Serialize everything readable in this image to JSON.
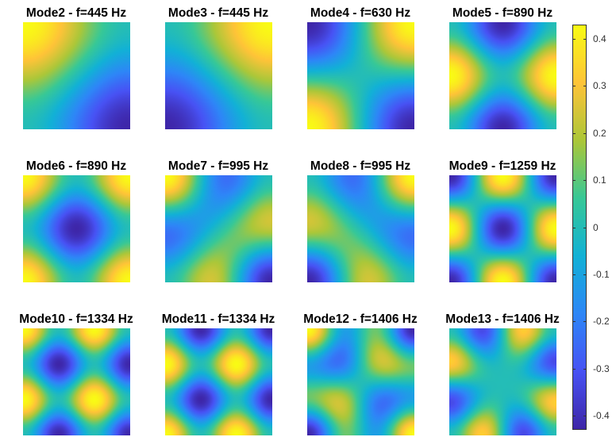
{
  "chart_data": {
    "type": "heatmap",
    "description_of_layout": "",
    "panels": [
      {
        "title": "Mode2 - f=445 Hz",
        "kind": "m2"
      },
      {
        "title": "Mode3 - f=445 Hz",
        "kind": "m3"
      },
      {
        "title": "Mode4 - f=630 Hz",
        "kind": "m4"
      },
      {
        "title": "Mode5 - f=890 Hz",
        "kind": "m5"
      },
      {
        "title": "Mode6 - f=890 Hz",
        "kind": "m6"
      },
      {
        "title": "Mode7 - f=995 Hz",
        "kind": "m7"
      },
      {
        "title": "Mode8 - f=995 Hz",
        "kind": "m8"
      },
      {
        "title": "Mode9 - f=1259 Hz",
        "kind": "m9"
      },
      {
        "title": "Mode10 - f=1334 Hz",
        "kind": "m10"
      },
      {
        "title": "Mode11 - f=1334 Hz",
        "kind": "m11"
      },
      {
        "title": "Mode12 - f=1406 Hz",
        "kind": "m12"
      },
      {
        "title": "Mode13 - f=1406 Hz",
        "kind": "m13"
      }
    ],
    "colorbar": {
      "colormap": "parula",
      "range": [
        -0.43,
        0.43
      ],
      "ticks": [
        0.4,
        0.3,
        0.2,
        0.1,
        0,
        -0.1,
        -0.2,
        -0.3,
        -0.4
      ],
      "tick_labels": [
        "0.4",
        "0.3",
        "0.2",
        "0.1",
        "0",
        "-0.1",
        "-0.2",
        "-0.3",
        "-0.4"
      ]
    }
  }
}
